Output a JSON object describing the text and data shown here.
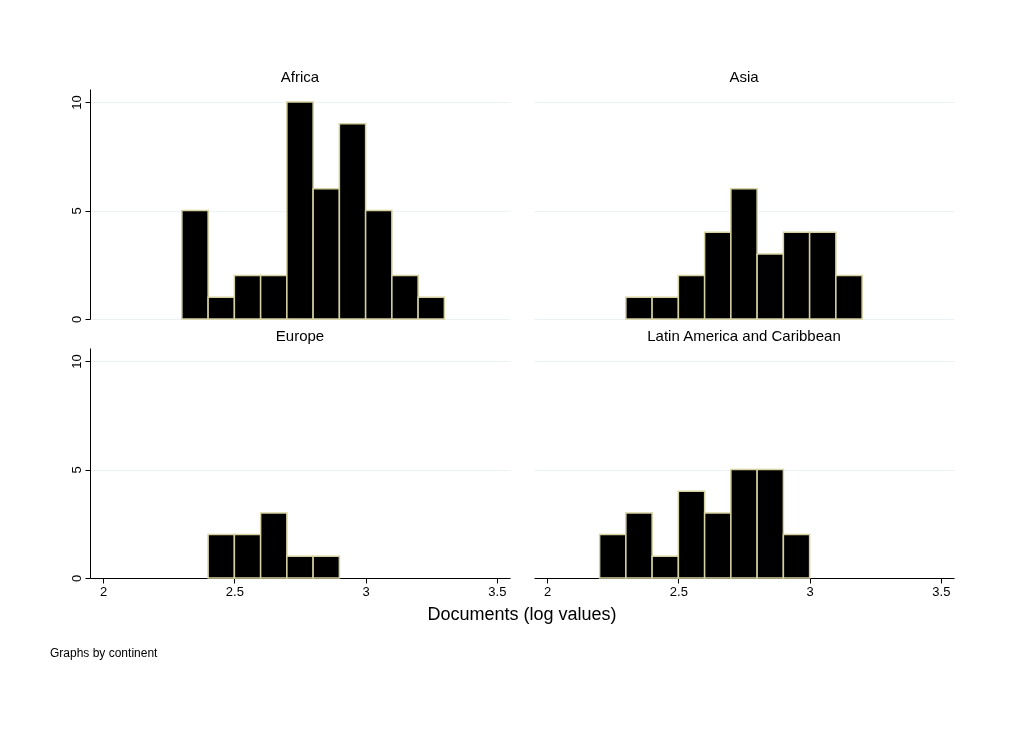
{
  "chart_data": [
    {
      "type": "histogram",
      "title": "Africa",
      "bins": [
        2.3,
        2.4,
        2.5,
        2.6,
        2.7,
        2.8,
        2.9,
        3.0,
        3.1,
        3.2,
        3.3
      ],
      "values": [
        5,
        1,
        2,
        2,
        10,
        6,
        9,
        5,
        2,
        1
      ],
      "color": "#000000",
      "xlim": [
        1.95,
        3.55
      ],
      "xticks": [
        2,
        2.5,
        3,
        3.5
      ],
      "ylim": [
        0,
        10.6
      ],
      "yticks": [
        0,
        5,
        10
      ],
      "grid": "y",
      "tick_labels": "y"
    },
    {
      "type": "histogram",
      "title": "Asia",
      "bins": [
        2.3,
        2.4,
        2.5,
        2.6,
        2.7,
        2.8,
        2.9,
        3.0,
        3.1,
        3.2
      ],
      "values": [
        1,
        1,
        2,
        4,
        6,
        3,
        4,
        4,
        2
      ],
      "color": "#000000",
      "xlim": [
        1.95,
        3.55
      ],
      "xticks": [
        2,
        2.5,
        3,
        3.5
      ],
      "yticks": [
        0,
        5,
        10
      ],
      "grid": "y",
      "tick_labels": false
    },
    {
      "type": "histogram",
      "title": "Europe",
      "xlabel": "Documents (log values)",
      "annotations": [
        "Graphs by continent"
      ],
      "bins": [
        2.4,
        2.5,
        2.6,
        2.7,
        2.8,
        2.9
      ],
      "values": [
        2,
        2,
        3,
        1,
        1
      ],
      "color": "#000000",
      "xlim": [
        1.95,
        3.55
      ],
      "xticks": [
        2,
        2.5,
        3,
        3.5
      ],
      "ylim": [
        0,
        10.6
      ],
      "yticks": [
        0,
        5,
        10
      ],
      "grid": "y"
    },
    {
      "type": "histogram",
      "title": "Latin America and Caribbean",
      "bins": [
        2.2,
        2.3,
        2.4,
        2.5,
        2.6,
        2.7,
        2.8,
        2.9,
        3.0
      ],
      "values": [
        2,
        3,
        1,
        4,
        3,
        5,
        5,
        2
      ],
      "color": "#000000",
      "xlim": [
        1.95,
        3.55
      ],
      "xticks": [
        2,
        2.5,
        3,
        3.5
      ],
      "yticks": [
        0,
        5,
        10
      ],
      "grid": "y",
      "tick_labels": "x"
    }
  ]
}
